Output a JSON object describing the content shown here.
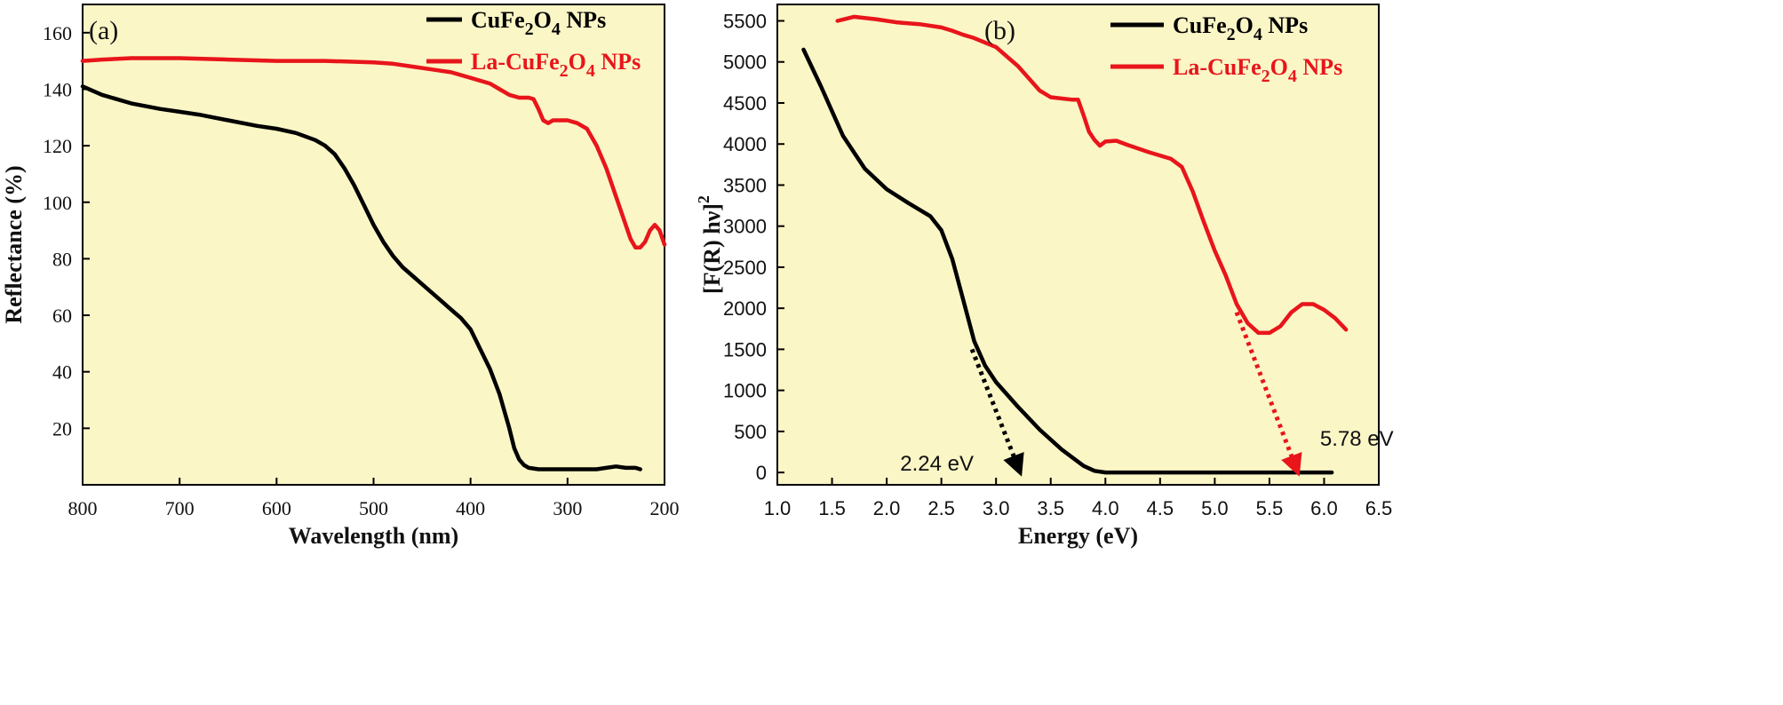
{
  "chart_data": [
    {
      "panel": "(a)",
      "type": "line",
      "xlabel": "Wavelength (nm)",
      "ylabel": "Reflectance (%)",
      "xlim": [
        800,
        200
      ],
      "ylim": [
        0,
        170
      ],
      "xticks": [
        800,
        700,
        600,
        500,
        400,
        300,
        200
      ],
      "yticks": [
        20,
        40,
        60,
        80,
        100,
        120,
        140,
        160
      ],
      "background": "#fbf6c6",
      "legend_position": "top-right",
      "series": [
        {
          "name": "CuFe",
          "legend": {
            "base": "CuFe",
            "sub1": "2",
            "mid": "O",
            "sub2": "4",
            "tail": " NPs"
          },
          "color": "#000000",
          "x": [
            800,
            780,
            750,
            720,
            700,
            680,
            650,
            620,
            600,
            580,
            560,
            550,
            540,
            530,
            520,
            510,
            500,
            490,
            480,
            470,
            460,
            450,
            440,
            430,
            420,
            410,
            400,
            390,
            380,
            370,
            360,
            355,
            350,
            345,
            340,
            330,
            320,
            310,
            300,
            290,
            280,
            270,
            260,
            250,
            240,
            230,
            225
          ],
          "y": [
            141,
            138,
            135,
            133,
            132,
            131,
            129,
            127,
            126,
            124.5,
            122,
            120,
            117,
            112,
            106,
            99,
            92,
            86,
            81,
            77,
            74,
            71,
            68,
            65,
            62,
            59,
            55,
            48,
            41,
            32,
            20,
            13,
            9,
            7,
            6,
            5.5,
            5.5,
            5.5,
            5.5,
            5.5,
            5.5,
            5.5,
            6,
            6.5,
            6,
            6,
            5.5
          ]
        },
        {
          "name": "La-CuFe",
          "legend": {
            "base": "La-CuFe",
            "sub1": "2",
            "mid": "O",
            "sub2": "4",
            "tail": " NPs"
          },
          "color": "#e8151b",
          "x": [
            800,
            780,
            750,
            700,
            650,
            600,
            550,
            500,
            480,
            460,
            440,
            420,
            400,
            380,
            370,
            360,
            350,
            340,
            335,
            330,
            325,
            320,
            315,
            310,
            300,
            290,
            280,
            270,
            260,
            250,
            240,
            235,
            230,
            225,
            220,
            215,
            210,
            205,
            200
          ],
          "y": [
            150,
            150.5,
            151,
            151,
            150.5,
            150,
            150,
            149.5,
            149,
            148,
            147,
            146,
            144,
            142,
            140,
            138,
            137,
            137,
            136.5,
            133,
            129,
            128,
            129,
            129,
            129,
            128,
            126,
            120,
            112,
            102,
            92,
            87,
            84,
            84,
            86,
            90,
            92,
            90,
            85
          ]
        }
      ]
    },
    {
      "panel": "(b)",
      "type": "line",
      "xlabel": "Energy (eV)",
      "ylabel": "[F(R) hν]",
      "ylabel_sup": "2",
      "xlim": [
        1.0,
        6.5
      ],
      "ylim": [
        -150,
        5700
      ],
      "xticks": [
        "1.0",
        "1.5",
        "2.0",
        "2.5",
        "3.0",
        "3.5",
        "4.0",
        "4.5",
        "5.0",
        "5.5",
        "6.0",
        "6.5"
      ],
      "yticks": [
        "0",
        "500",
        "1000",
        "1500",
        "2000",
        "2500",
        "3000",
        "3500",
        "4000",
        "4500",
        "5000",
        "5500"
      ],
      "background": "#fbf6c6",
      "legend_position": "top-right",
      "series": [
        {
          "name": "CuFe",
          "legend": {
            "base": "CuFe",
            "sub1": "2",
            "mid": "O",
            "sub2": "4",
            "tail": " NPs"
          },
          "color": "#000000",
          "x": [
            1.24,
            1.4,
            1.6,
            1.8,
            2.0,
            2.2,
            2.4,
            2.5,
            2.6,
            2.7,
            2.8,
            2.9,
            3.0,
            3.2,
            3.4,
            3.6,
            3.8,
            3.9,
            4.0,
            4.5,
            5.0,
            5.5,
            6.0,
            6.07
          ],
          "y": [
            5150,
            4700,
            4100,
            3700,
            3450,
            3280,
            3120,
            2950,
            2600,
            2100,
            1600,
            1300,
            1100,
            800,
            520,
            280,
            80,
            20,
            0,
            0,
            0,
            0,
            0,
            0
          ]
        },
        {
          "name": "La-CuFe",
          "legend": {
            "base": "La-CuFe",
            "sub1": "2",
            "mid": "O",
            "sub2": "4",
            "tail": " NPs"
          },
          "color": "#e8151b",
          "x": [
            1.55,
            1.7,
            1.9,
            2.1,
            2.3,
            2.5,
            2.6,
            2.7,
            2.8,
            3.0,
            3.2,
            3.4,
            3.5,
            3.7,
            3.75,
            3.8,
            3.85,
            3.9,
            3.95,
            4.0,
            4.1,
            4.2,
            4.4,
            4.6,
            4.7,
            4.8,
            4.9,
            5.0,
            5.1,
            5.2,
            5.3,
            5.4,
            5.5,
            5.6,
            5.7,
            5.8,
            5.9,
            6.0,
            6.1,
            6.2
          ],
          "y": [
            5500,
            5550,
            5520,
            5480,
            5460,
            5420,
            5380,
            5330,
            5290,
            5180,
            4950,
            4650,
            4570,
            4540,
            4540,
            4350,
            4150,
            4050,
            3980,
            4030,
            4040,
            3990,
            3900,
            3820,
            3720,
            3420,
            3050,
            2700,
            2400,
            2050,
            1820,
            1700,
            1700,
            1780,
            1950,
            2050,
            2050,
            1980,
            1880,
            1740
          ]
        }
      ],
      "annotations": [
        {
          "label": "2.24 eV",
          "color": "#000000",
          "from_x": 2.78,
          "from_y": 1500,
          "to_x": 3.22,
          "to_y": 0
        },
        {
          "label": "5.78 eV",
          "color": "#e8151b",
          "from_x": 5.2,
          "from_y": 1950,
          "to_x": 5.76,
          "to_y": 0
        }
      ]
    }
  ]
}
